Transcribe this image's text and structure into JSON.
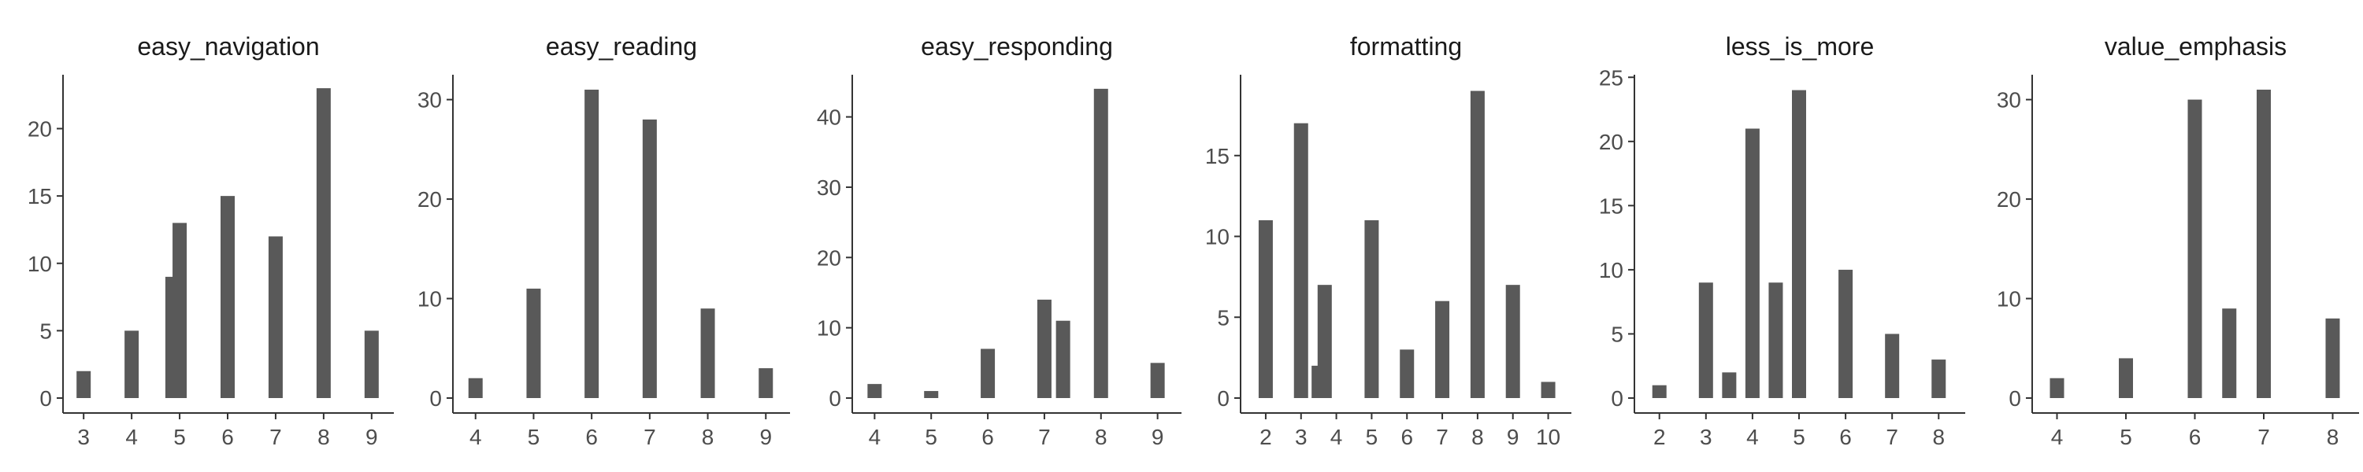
{
  "chart_data": [
    {
      "type": "bar",
      "title": "easy_navigation",
      "xlabel": "",
      "ylabel": "",
      "xlim": [
        2.8,
        9.2
      ],
      "ylim": [
        0,
        24
      ],
      "x_ticks": [
        3,
        4,
        5,
        6,
        7,
        8,
        9
      ],
      "y_ticks": [
        0,
        5,
        10,
        15,
        20
      ],
      "bars": [
        {
          "x": 3,
          "value": 2
        },
        {
          "x": 4,
          "value": 5
        },
        {
          "x": 4.85,
          "value": 9
        },
        {
          "x": 5,
          "value": 13
        },
        {
          "x": 6,
          "value": 15
        },
        {
          "x": 7,
          "value": 12
        },
        {
          "x": 8,
          "value": 23
        },
        {
          "x": 9,
          "value": 5
        }
      ],
      "bar_color": "#595959",
      "grid": false
    },
    {
      "type": "bar",
      "title": "easy_reading",
      "xlabel": "",
      "ylabel": "",
      "xlim": [
        3.8,
        9.2
      ],
      "ylim": [
        0,
        32.5
      ],
      "x_ticks": [
        4,
        5,
        6,
        7,
        8,
        9
      ],
      "y_ticks": [
        0,
        10,
        20,
        30
      ],
      "bars": [
        {
          "x": 4,
          "value": 2
        },
        {
          "x": 5,
          "value": 11
        },
        {
          "x": 6,
          "value": 31
        },
        {
          "x": 7,
          "value": 28
        },
        {
          "x": 8,
          "value": 9
        },
        {
          "x": 9,
          "value": 3
        }
      ],
      "bar_color": "#595959",
      "grid": false
    },
    {
      "type": "bar",
      "title": "easy_responding",
      "xlabel": "",
      "ylabel": "",
      "xlim": [
        3.8,
        9.2
      ],
      "ylim": [
        0,
        46
      ],
      "x_ticks": [
        4,
        5,
        6,
        7,
        8,
        9
      ],
      "y_ticks": [
        0,
        10,
        20,
        30,
        40
      ],
      "bars": [
        {
          "x": 4,
          "value": 2
        },
        {
          "x": 5,
          "value": 1
        },
        {
          "x": 6,
          "value": 7
        },
        {
          "x": 7,
          "value": 14
        },
        {
          "x": 7.33,
          "value": 11
        },
        {
          "x": 8,
          "value": 44
        },
        {
          "x": 9,
          "value": 5
        }
      ],
      "bar_color": "#595959",
      "grid": false
    },
    {
      "type": "bar",
      "title": "formatting",
      "xlabel": "",
      "ylabel": "",
      "xlim": [
        1.6,
        10.3
      ],
      "ylim": [
        0,
        20
      ],
      "x_ticks": [
        2,
        3,
        4,
        5,
        6,
        7,
        8,
        9,
        10
      ],
      "y_ticks": [
        0,
        5,
        10,
        15
      ],
      "bars": [
        {
          "x": 2,
          "value": 11
        },
        {
          "x": 3,
          "value": 17
        },
        {
          "x": 3.5,
          "value": 2
        },
        {
          "x": 3.67,
          "value": 7
        },
        {
          "x": 5,
          "value": 11
        },
        {
          "x": 6,
          "value": 3
        },
        {
          "x": 7,
          "value": 6
        },
        {
          "x": 8,
          "value": 19
        },
        {
          "x": 9,
          "value": 7
        },
        {
          "x": 10,
          "value": 1
        }
      ],
      "bar_color": "#595959",
      "grid": false
    },
    {
      "type": "bar",
      "title": "less_is_more",
      "xlabel": "",
      "ylabel": "",
      "xlim": [
        1.7,
        8.3
      ],
      "ylim": [
        0,
        25.2
      ],
      "x_ticks": [
        2,
        3,
        4,
        5,
        6,
        7,
        8
      ],
      "y_ticks": [
        0,
        5,
        10,
        15,
        20,
        25
      ],
      "bars": [
        {
          "x": 2,
          "value": 1
        },
        {
          "x": 3,
          "value": 9
        },
        {
          "x": 3.5,
          "value": 2
        },
        {
          "x": 4,
          "value": 21
        },
        {
          "x": 4.5,
          "value": 9
        },
        {
          "x": 5,
          "value": 24
        },
        {
          "x": 6,
          "value": 10
        },
        {
          "x": 7,
          "value": 5
        },
        {
          "x": 8,
          "value": 3
        }
      ],
      "bar_color": "#595959",
      "grid": false
    },
    {
      "type": "bar",
      "title": "value_emphasis",
      "xlabel": "",
      "ylabel": "",
      "xlim": [
        3.8,
        8.2
      ],
      "ylim": [
        0,
        32.5
      ],
      "x_ticks": [
        4,
        5,
        6,
        7,
        8
      ],
      "y_ticks": [
        0,
        10,
        20,
        30
      ],
      "bars": [
        {
          "x": 4,
          "value": 2
        },
        {
          "x": 5,
          "value": 4
        },
        {
          "x": 6,
          "value": 30
        },
        {
          "x": 6.5,
          "value": 9
        },
        {
          "x": 7,
          "value": 31
        },
        {
          "x": 8,
          "value": 8
        }
      ],
      "bar_color": "#595959",
      "grid": false
    }
  ]
}
